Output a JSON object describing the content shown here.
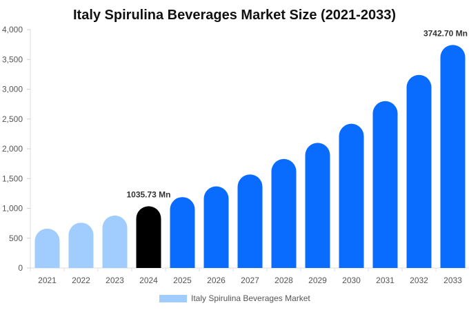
{
  "chart_data": {
    "type": "bar",
    "title": "Italy Spirulina Beverages Market Size (2021-2033)",
    "xlabel": "",
    "ylabel": "",
    "categories": [
      "2021",
      "2022",
      "2023",
      "2024",
      "2025",
      "2026",
      "2027",
      "2028",
      "2029",
      "2030",
      "2031",
      "2032",
      "2033"
    ],
    "series": [
      {
        "name": "Italy Spirulina Beverages Market",
        "values": [
          660,
          760,
          880,
          1035.73,
          1190,
          1370,
          1570,
          1830,
          2100,
          2420,
          2800,
          3240,
          3742.7
        ]
      }
    ],
    "ylim": [
      0,
      4000
    ],
    "yticks": [
      0,
      500,
      1000,
      1500,
      2000,
      2500,
      3000,
      3500,
      4000
    ],
    "ytick_labels": [
      "0",
      "500",
      "1,000",
      "1,500",
      "2,000",
      "2,500",
      "3,000",
      "3,500",
      "4,000"
    ],
    "annotations": [
      {
        "category": "2024",
        "text": "1035.73 Mn"
      },
      {
        "category": "2033",
        "text": "3742.70 Mn"
      }
    ],
    "bar_colors": {
      "2021": "#a0cdfd",
      "2022": "#a0cdfd",
      "2023": "#a0cdfd",
      "2024": "#000000",
      "2025": "#0a6cff",
      "2026": "#0a6cff",
      "2027": "#0a6cff",
      "2028": "#0a6cff",
      "2029": "#0a6cff",
      "2030": "#0a6cff",
      "2031": "#0a6cff",
      "2032": "#0a6cff",
      "2033": "#0a6cff"
    },
    "legend_color": "#a0cdfd",
    "legend_position": "bottom",
    "grid": false
  }
}
